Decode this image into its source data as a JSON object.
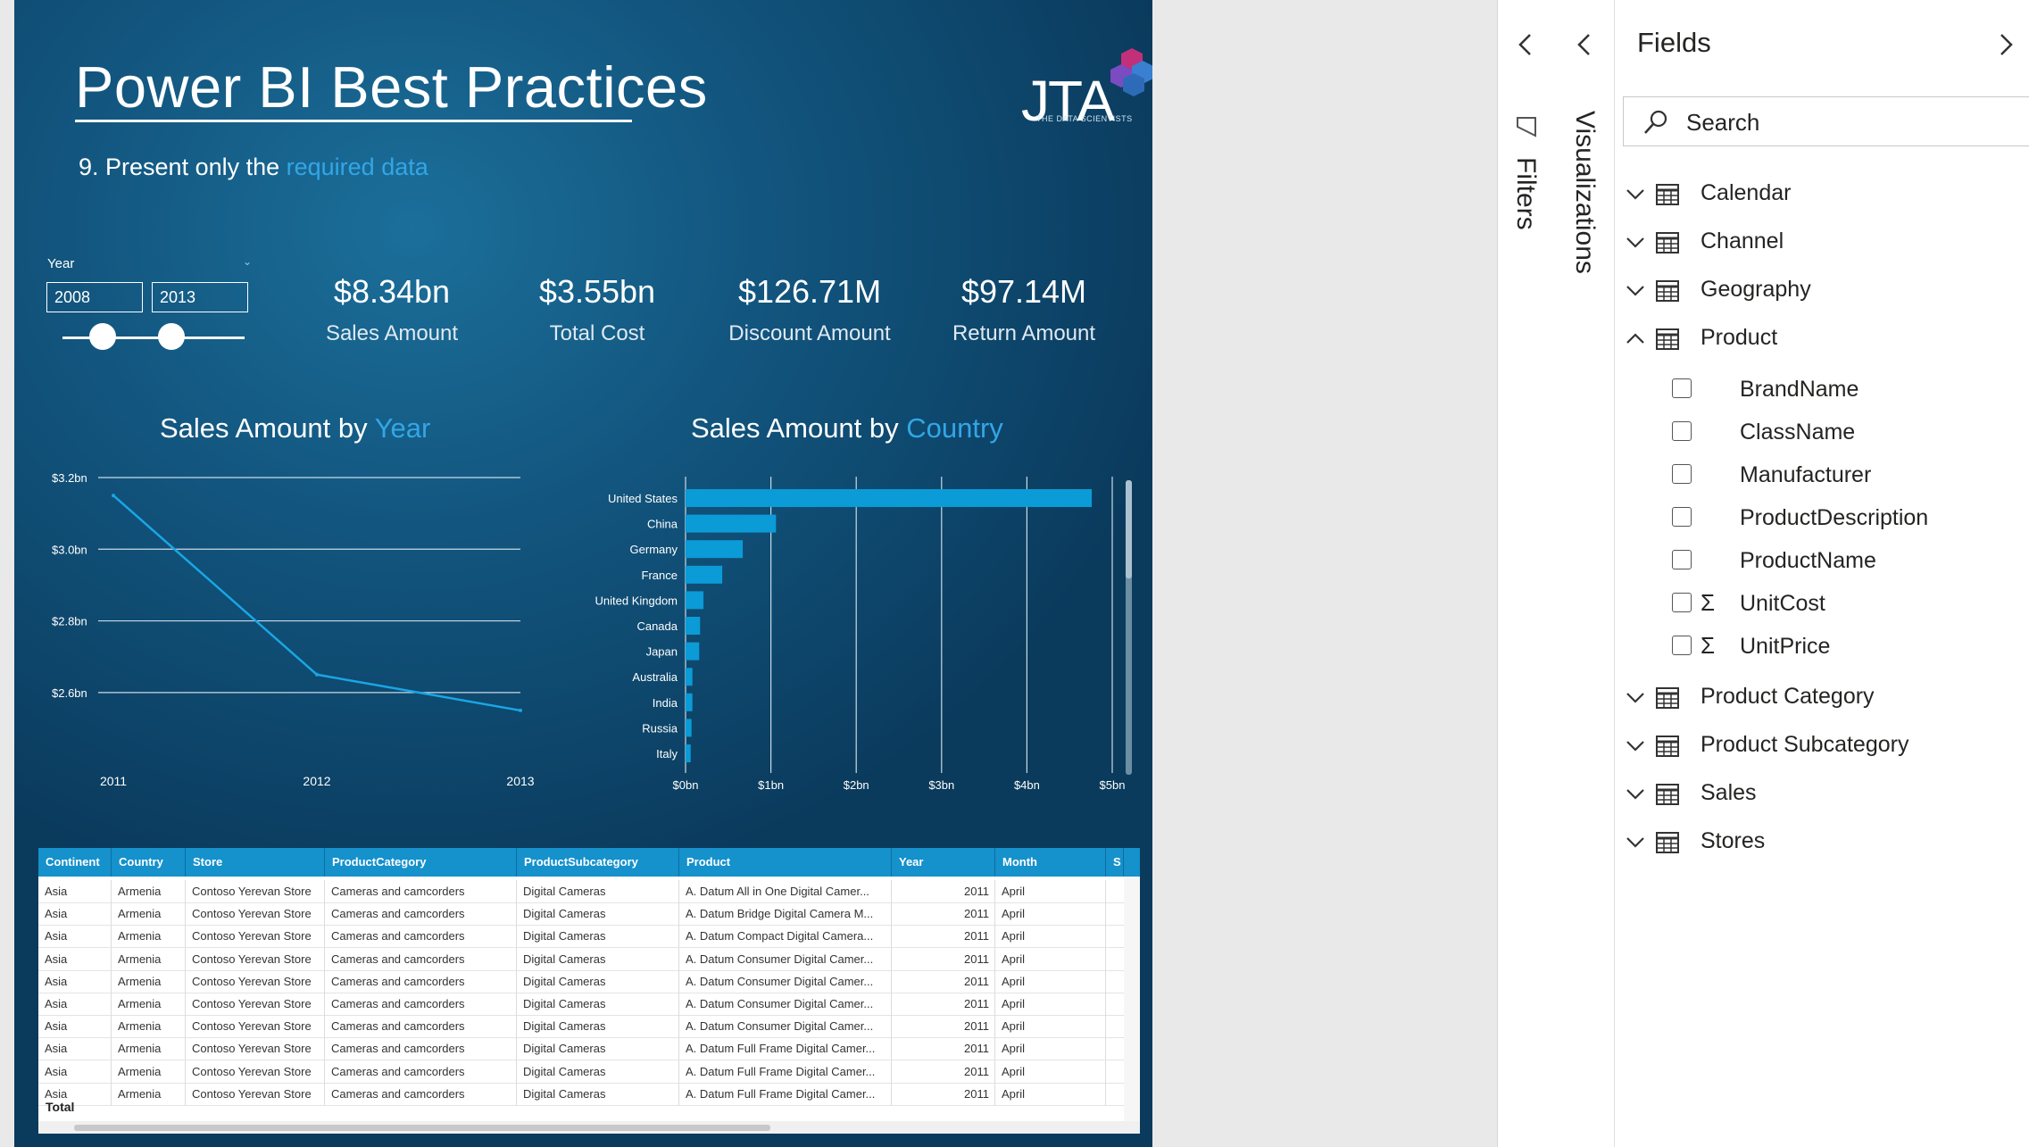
{
  "report": {
    "title": "Power BI Best Practices",
    "subtitle_prefix": "9. Present only the ",
    "subtitle_highlight": "required data",
    "logo_text": "JTA",
    "logo_tagline": "THE DATA SCIENTISTS"
  },
  "slicer": {
    "label": "Year",
    "start": "2008",
    "end": "2013"
  },
  "kpis": [
    {
      "value": "$8.34bn",
      "label": "Sales Amount"
    },
    {
      "value": "$3.55bn",
      "label": "Total Cost"
    },
    {
      "value": "$126.71M",
      "label": "Discount Amount"
    },
    {
      "value": "$97.14M",
      "label": "Return Amount"
    }
  ],
  "line_chart_title": {
    "prefix": "Sales Amount by ",
    "highlight": "Year"
  },
  "bar_chart_title": {
    "prefix": "Sales Amount by ",
    "highlight": "Country"
  },
  "chart_data": [
    {
      "type": "line",
      "title": "Sales Amount by Year",
      "x": [
        "2011",
        "2012",
        "2013"
      ],
      "series": [
        {
          "values": [
            3.15,
            2.65,
            2.55
          ]
        }
      ],
      "ylim": [
        2.5,
        3.2
      ],
      "yticks": [
        "$2.6bn",
        "$2.8bn",
        "$3.0bn",
        "$3.2bn"
      ],
      "ytick_values": [
        2.6,
        2.8,
        3.0,
        3.2
      ],
      "grid": true,
      "line_color": "#1aa6e4"
    },
    {
      "type": "bar",
      "orientation": "horizontal",
      "title": "Sales Amount by Country",
      "categories": [
        "United States",
        "China",
        "Germany",
        "France",
        "United Kingdom",
        "Canada",
        "Japan",
        "Australia",
        "India",
        "Russia",
        "Italy"
      ],
      "values": [
        4.76,
        1.06,
        0.67,
        0.43,
        0.21,
        0.17,
        0.16,
        0.08,
        0.08,
        0.07,
        0.06
      ],
      "xticks": [
        "$0bn",
        "$1bn",
        "$2bn",
        "$3bn",
        "$4bn",
        "$5bn"
      ],
      "xlim": [
        0,
        5
      ],
      "grid": true,
      "bar_color": "#0b9bd7"
    }
  ],
  "table": {
    "columns": [
      "Continent",
      "Country",
      "Store",
      "ProductCategory",
      "ProductSubcategory",
      "Product",
      "Year",
      "Month",
      "S"
    ],
    "rows": [
      [
        "Asia",
        "Armenia",
        "Contoso Yerevan Store",
        "Cameras and camcorders",
        "Digital Cameras",
        "A. Datum All in One Digital Camer...",
        "2011",
        "April"
      ],
      [
        "Asia",
        "Armenia",
        "Contoso Yerevan Store",
        "Cameras and camcorders",
        "Digital Cameras",
        "A. Datum Bridge Digital Camera M...",
        "2011",
        "April"
      ],
      [
        "Asia",
        "Armenia",
        "Contoso Yerevan Store",
        "Cameras and camcorders",
        "Digital Cameras",
        "A. Datum Compact Digital Camera...",
        "2011",
        "April"
      ],
      [
        "Asia",
        "Armenia",
        "Contoso Yerevan Store",
        "Cameras and camcorders",
        "Digital Cameras",
        "A. Datum Consumer Digital Camer...",
        "2011",
        "April"
      ],
      [
        "Asia",
        "Armenia",
        "Contoso Yerevan Store",
        "Cameras and camcorders",
        "Digital Cameras",
        "A. Datum Consumer Digital Camer...",
        "2011",
        "April"
      ],
      [
        "Asia",
        "Armenia",
        "Contoso Yerevan Store",
        "Cameras and camcorders",
        "Digital Cameras",
        "A. Datum Consumer Digital Camer...",
        "2011",
        "April"
      ],
      [
        "Asia",
        "Armenia",
        "Contoso Yerevan Store",
        "Cameras and camcorders",
        "Digital Cameras",
        "A. Datum Consumer Digital Camer...",
        "2011",
        "April"
      ],
      [
        "Asia",
        "Armenia",
        "Contoso Yerevan Store",
        "Cameras and camcorders",
        "Digital Cameras",
        "A. Datum Full Frame Digital Camer...",
        "2011",
        "April"
      ],
      [
        "Asia",
        "Armenia",
        "Contoso Yerevan Store",
        "Cameras and camcorders",
        "Digital Cameras",
        "A. Datum Full Frame Digital Camer...",
        "2011",
        "April"
      ],
      [
        "Asia",
        "Armenia",
        "Contoso Yerevan Store",
        "Cameras and camcorders",
        "Digital Cameras",
        "A. Datum Full Frame Digital Camer...",
        "2011",
        "April"
      ]
    ],
    "total_label": "Total"
  },
  "panes": {
    "filters_label": "Filters",
    "visualizations_label": "Visualizations",
    "fields_title": "Fields",
    "search_placeholder": "Search",
    "tables": [
      {
        "name": "Calendar",
        "expanded": false
      },
      {
        "name": "Channel",
        "expanded": false
      },
      {
        "name": "Geography",
        "expanded": false
      },
      {
        "name": "Product",
        "expanded": true,
        "fields": [
          {
            "name": "BrandName",
            "sigma": false
          },
          {
            "name": "ClassName",
            "sigma": false
          },
          {
            "name": "Manufacturer",
            "sigma": false
          },
          {
            "name": "ProductDescription",
            "sigma": false
          },
          {
            "name": "ProductName",
            "sigma": false
          },
          {
            "name": "UnitCost",
            "sigma": true
          },
          {
            "name": "UnitPrice",
            "sigma": true
          }
        ]
      },
      {
        "name": "Product Category",
        "expanded": false
      },
      {
        "name": "Product Subcategory",
        "expanded": false
      },
      {
        "name": "Sales",
        "expanded": false
      },
      {
        "name": "Stores",
        "expanded": false
      }
    ]
  }
}
